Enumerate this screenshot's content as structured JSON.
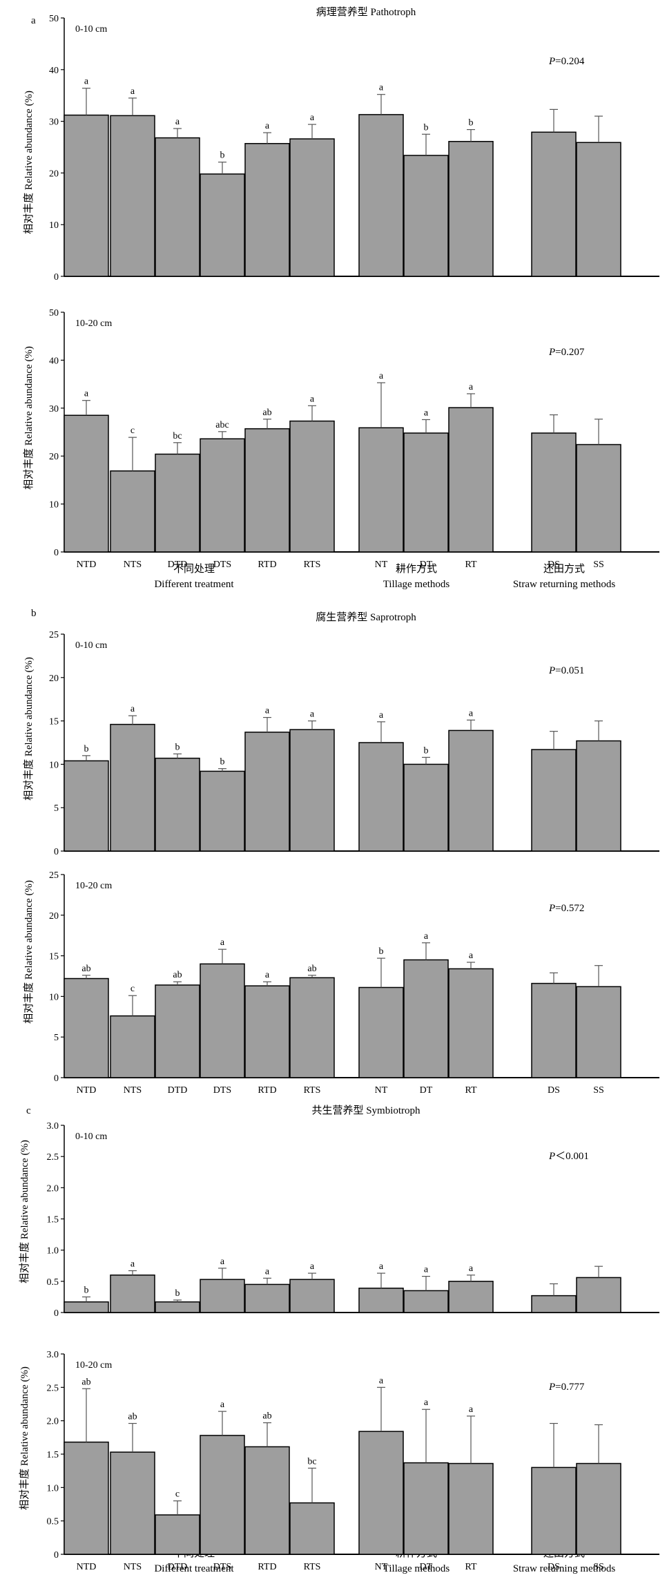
{
  "figure": {
    "colors": {
      "bar": "#9e9e9e",
      "stroke": "#000000",
      "background": "#ffffff"
    },
    "ylabel": "相对丰度 Relative abundance (%)",
    "group_labels": {
      "treatment_cn": "不同处理",
      "treatment_en": "Different treatment",
      "tillage_cn": "耕作方式",
      "tillage_en": "Tillage methods",
      "straw_cn": "还田方式",
      "straw_en": "Straw returning methods"
    },
    "categories": [
      "NTD",
      "NTS",
      "DTD",
      "DTS",
      "RTD",
      "RTS",
      "NT",
      "DT",
      "RT",
      "DS",
      "SS"
    ],
    "sections": [
      {
        "letter": "a",
        "title": "病理营养型 Pathotroph"
      },
      {
        "letter": "b",
        "title": "腐生营养型 Saprotroph"
      },
      {
        "letter": "c",
        "title": "共生营养型 Symbiotroph"
      }
    ]
  },
  "chart_data": [
    {
      "type": "bar",
      "section": 0,
      "depth": "0-10 cm",
      "ylim": [
        0,
        50
      ],
      "yticks": [
        "0",
        "10",
        "20",
        "30",
        "40",
        "50"
      ],
      "categories": [
        "NTD",
        "NTS",
        "DTD",
        "DTS",
        "RTD",
        "RTS",
        "NT",
        "DT",
        "RT",
        "DS",
        "SS"
      ],
      "values": [
        31.2,
        31.1,
        26.8,
        19.8,
        25.7,
        26.6,
        31.3,
        23.4,
        26.1,
        27.9,
        25.9
      ],
      "errors": [
        5.2,
        3.4,
        1.8,
        2.3,
        2.1,
        2.8,
        3.9,
        4.1,
        2.3,
        4.4,
        5.1
      ],
      "letters": [
        "a",
        "a",
        "a",
        "b",
        "a",
        "a",
        "a",
        "b",
        "b",
        "",
        ""
      ],
      "p_value": "P=0.204",
      "show_xticks": false
    },
    {
      "type": "bar",
      "section": 0,
      "depth": "10-20 cm",
      "ylim": [
        0,
        50
      ],
      "yticks": [
        "0",
        "10",
        "20",
        "30",
        "40",
        "50"
      ],
      "categories": [
        "NTD",
        "NTS",
        "DTD",
        "DTS",
        "RTD",
        "RTS",
        "NT",
        "DT",
        "RT",
        "DS",
        "SS"
      ],
      "values": [
        28.5,
        16.9,
        20.4,
        23.6,
        25.7,
        27.3,
        25.9,
        24.8,
        30.1,
        24.8,
        22.4
      ],
      "errors": [
        3.1,
        7.0,
        2.4,
        1.5,
        2.0,
        3.2,
        9.4,
        2.8,
        2.9,
        3.8,
        5.3
      ],
      "letters": [
        "a",
        "c",
        "bc",
        "abc",
        "ab",
        "a",
        "a",
        "a",
        "a",
        "",
        ""
      ],
      "p_value": "P=0.207",
      "show_xticks": true
    },
    {
      "type": "bar",
      "section": 1,
      "depth": "0-10 cm",
      "ylim": [
        0,
        25
      ],
      "yticks": [
        "0",
        "5",
        "10",
        "15",
        "20",
        "25"
      ],
      "categories": [
        "NTD",
        "NTS",
        "DTD",
        "DTS",
        "RTD",
        "RTS",
        "NT",
        "DT",
        "RT",
        "DS",
        "SS"
      ],
      "values": [
        10.4,
        14.6,
        10.7,
        9.2,
        13.7,
        14.0,
        12.5,
        10.0,
        13.9,
        11.7,
        12.7
      ],
      "errors": [
        0.6,
        1.0,
        0.5,
        0.3,
        1.7,
        1.0,
        2.4,
        0.8,
        1.2,
        2.1,
        2.3
      ],
      "letters": [
        "b",
        "a",
        "b",
        "b",
        "a",
        "a",
        "a",
        "b",
        "a",
        "",
        ""
      ],
      "p_value": "P=0.051",
      "show_xticks": false
    },
    {
      "type": "bar",
      "section": 1,
      "depth": "10-20 cm",
      "ylim": [
        0,
        25
      ],
      "yticks": [
        "0",
        "5",
        "10",
        "15",
        "20",
        "25"
      ],
      "categories": [
        "NTD",
        "NTS",
        "DTD",
        "DTS",
        "RTD",
        "RTS",
        "NT",
        "DT",
        "RT",
        "DS",
        "SS"
      ],
      "values": [
        12.2,
        7.6,
        11.4,
        14.0,
        11.3,
        12.3,
        11.1,
        14.5,
        13.4,
        11.6,
        11.2
      ],
      "errors": [
        0.4,
        2.5,
        0.4,
        1.8,
        0.5,
        0.3,
        3.6,
        2.1,
        0.8,
        1.3,
        2.6
      ],
      "letters": [
        "ab",
        "c",
        "ab",
        "a",
        "a",
        "ab",
        "b",
        "a",
        "a",
        "",
        ""
      ],
      "p_value": "P=0.572",
      "show_xticks": true
    },
    {
      "type": "bar",
      "section": 2,
      "depth": "0-10 cm",
      "ylim": [
        0,
        3.0
      ],
      "yticks": [
        "0",
        "0.5",
        "1.0",
        "1.5",
        "2.0",
        "2.5",
        "3.0"
      ],
      "categories": [
        "NTD",
        "NTS",
        "DTD",
        "DTS",
        "RTD",
        "RTS",
        "NT",
        "DT",
        "RT",
        "DS",
        "SS"
      ],
      "values": [
        0.17,
        0.6,
        0.17,
        0.53,
        0.45,
        0.53,
        0.39,
        0.35,
        0.5,
        0.27,
        0.56
      ],
      "errors": [
        0.08,
        0.07,
        0.03,
        0.18,
        0.1,
        0.1,
        0.24,
        0.23,
        0.1,
        0.19,
        0.18
      ],
      "letters": [
        "b",
        "a",
        "b",
        "a",
        "a",
        "a",
        "a",
        "a",
        "a",
        "",
        ""
      ],
      "p_value": "P＜0.001",
      "show_xticks": false
    },
    {
      "type": "bar",
      "section": 2,
      "depth": "10-20 cm",
      "ylim": [
        0,
        3.0
      ],
      "yticks": [
        "0",
        "0.5",
        "1.0",
        "1.5",
        "2.0",
        "2.5",
        "3.0"
      ],
      "categories": [
        "NTD",
        "NTS",
        "DTD",
        "DTS",
        "RTD",
        "RTS",
        "NT",
        "DT",
        "RT",
        "DS",
        "SS"
      ],
      "values": [
        1.68,
        1.53,
        0.59,
        1.78,
        1.61,
        0.77,
        1.84,
        1.37,
        1.36,
        1.3,
        1.36
      ],
      "errors": [
        0.8,
        0.43,
        0.21,
        0.36,
        0.36,
        0.52,
        0.66,
        0.8,
        0.71,
        0.66,
        0.58
      ],
      "letters": [
        "ab",
        "ab",
        "c",
        "a",
        "ab",
        "bc",
        "a",
        "a",
        "a",
        "",
        ""
      ],
      "p_value": "P=0.777",
      "show_xticks": true
    }
  ]
}
